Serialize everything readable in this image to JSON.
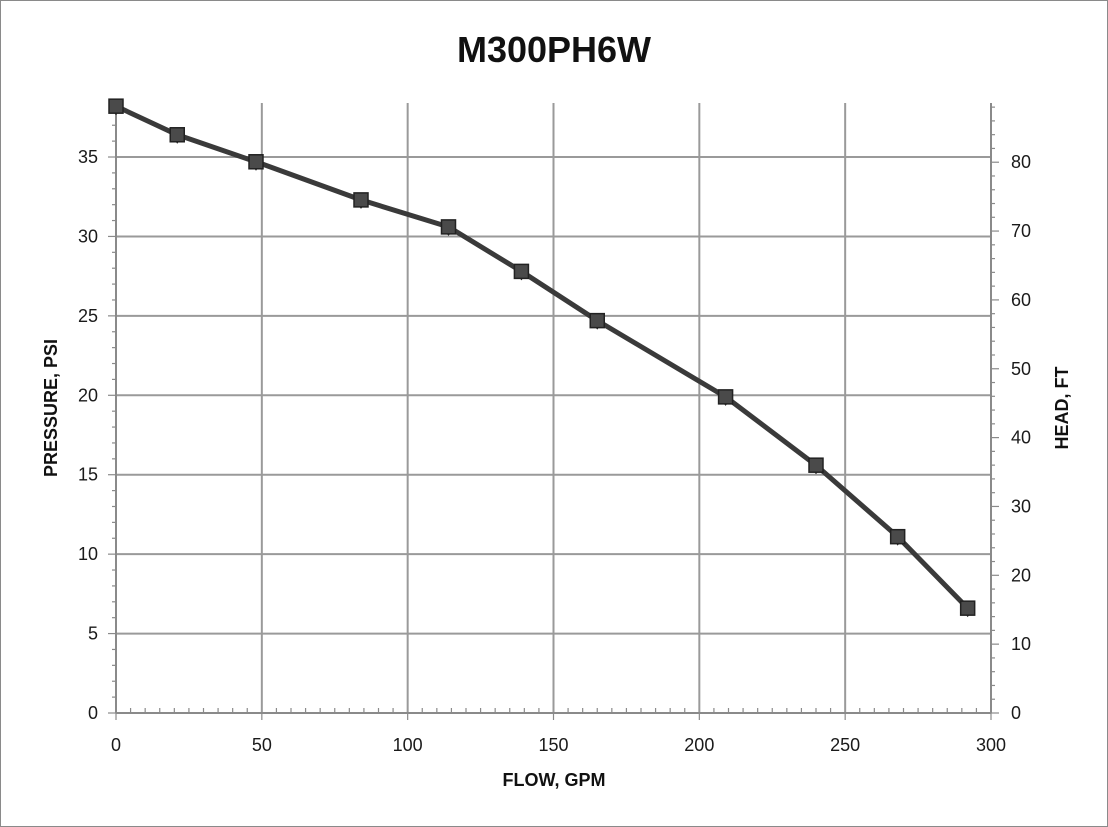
{
  "chart_data": {
    "type": "line",
    "title": "M300PH6W",
    "xlabel": "FLOW, GPM",
    "ylabel": "PRESSURE, PSI",
    "y2label": "HEAD, FT",
    "xlim": [
      0,
      300
    ],
    "ylim": [
      0,
      38.4
    ],
    "y2lim": [
      0,
      88.6
    ],
    "xticks": [
      "0",
      "50",
      "100",
      "150",
      "200",
      "250",
      "300"
    ],
    "yticks": [
      "0",
      "5",
      "10",
      "15",
      "20",
      "25",
      "30",
      "35"
    ],
    "y2ticks": [
      "0",
      "10",
      "20",
      "30",
      "40",
      "50",
      "60",
      "70",
      "80"
    ],
    "grid": true,
    "legend": "none",
    "series": [
      {
        "x": [
          0,
          21,
          48,
          84,
          114,
          139,
          165,
          209,
          240,
          268,
          292
        ],
        "y": [
          38.2,
          36.4,
          34.7,
          32.3,
          30.6,
          27.8,
          24.7,
          19.9,
          15.6,
          11.1,
          6.6
        ],
        "color": "#3a3a3a",
        "marker": "square"
      }
    ]
  }
}
